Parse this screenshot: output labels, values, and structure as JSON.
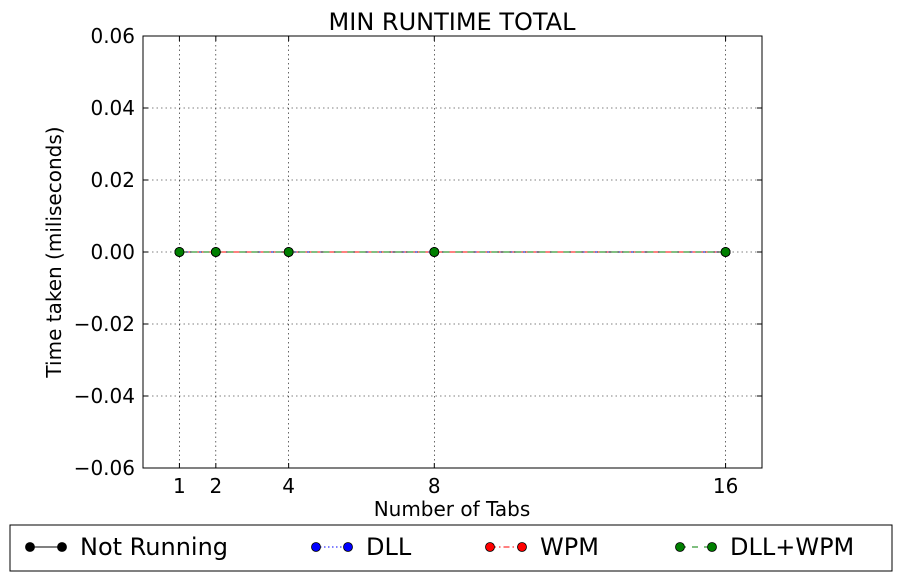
{
  "chart_data": {
    "type": "line",
    "title": "MIN RUNTIME TOTAL",
    "xlabel": "Number of Tabs",
    "ylabel": "Time taken (miliseconds)",
    "x": [
      1,
      2,
      4,
      8,
      16
    ],
    "xlim": [
      0,
      17
    ],
    "ylim": [
      -0.06,
      0.06
    ],
    "xticks": [
      1,
      2,
      4,
      8,
      16
    ],
    "xtick_labels": [
      "1",
      "2",
      "4",
      "8",
      "16"
    ],
    "yticks": [
      -0.06,
      -0.04,
      -0.02,
      0.0,
      0.02,
      0.04,
      0.06
    ],
    "ytick_labels": [
      "−0.06",
      "−0.04",
      "−0.02",
      "0.00",
      "0.02",
      "0.04",
      "0.06"
    ],
    "grid": true,
    "legend_position": "bottom",
    "series": [
      {
        "name": "Not Running",
        "values": [
          0,
          0,
          0,
          0,
          0
        ],
        "color": "#000000",
        "line_style": "solid",
        "marker": "circle"
      },
      {
        "name": "DLL",
        "values": [
          0,
          0,
          0,
          0,
          0
        ],
        "color": "#0000ff",
        "line_style": "dotted",
        "marker": "circle"
      },
      {
        "name": "WPM",
        "values": [
          0,
          0,
          0,
          0,
          0
        ],
        "color": "#ff0000",
        "line_style": "dashdot",
        "marker": "circle"
      },
      {
        "name": "DLL+WPM",
        "values": [
          0,
          0,
          0,
          0,
          0
        ],
        "color": "#007f00",
        "line_style": "dashed",
        "marker": "circle"
      }
    ]
  }
}
